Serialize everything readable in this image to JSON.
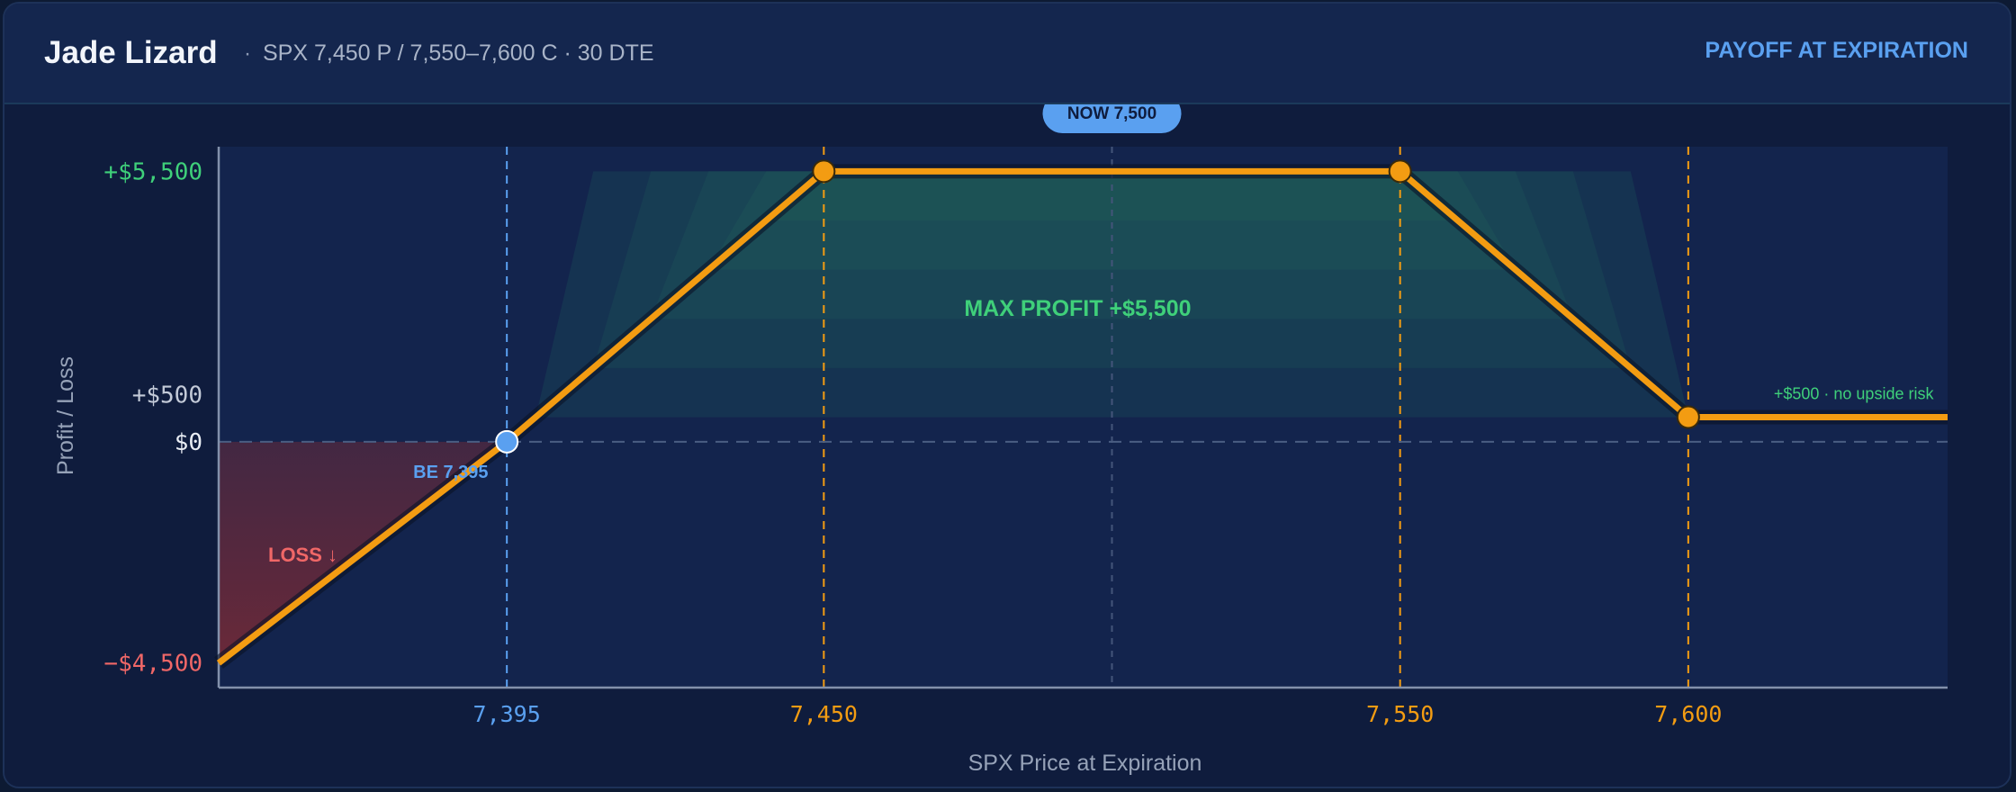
{
  "header": {
    "title": "Jade Lizard",
    "separator": "·",
    "subtitle": "SPX 7,450 P / 7,550–7,600 C · 30 DTE",
    "badge": "PAYOFF AT EXPIRATION"
  },
  "chart_data": {
    "type": "line",
    "title": "",
    "xlabel": "SPX Price at Expiration",
    "ylabel": "Profit / Loss",
    "xlim": [
      7345,
      7645
    ],
    "ylim": [
      -5000,
      6000
    ],
    "series": [
      {
        "x": [
          7345,
          7395,
          7450,
          7550,
          7600,
          7645
        ],
        "y": [
          -4500,
          0,
          5500,
          5500,
          500,
          500
        ]
      }
    ],
    "x_ticks": [
      {
        "value": 7395,
        "label": "7,395"
      },
      {
        "value": 7450,
        "label": "7,450"
      },
      {
        "value": 7550,
        "label": "7,550"
      },
      {
        "value": 7600,
        "label": "7,600"
      }
    ],
    "y_ticks": [
      {
        "value": 5500,
        "label": "+$5,500"
      },
      {
        "value": 500,
        "label": "+$500"
      },
      {
        "value": 0,
        "label": "$0"
      },
      {
        "value": -4500,
        "label": "−$4,500"
      }
    ],
    "markers": [
      {
        "x": 7395,
        "y": 0,
        "kind": "breakeven"
      },
      {
        "x": 7450,
        "y": 5500,
        "kind": "strike"
      },
      {
        "x": 7550,
        "y": 5500,
        "kind": "strike"
      },
      {
        "x": 7600,
        "y": 500,
        "kind": "strike"
      }
    ],
    "current_price": {
      "value": 7500,
      "label": "NOW 7,500"
    },
    "annotations": {
      "max_profit": "MAX PROFIT  +$5,500",
      "breakeven": "BE 7,395",
      "loss": "LOSS ↓",
      "upside": "+$500 · no upside risk"
    },
    "colors": {
      "payoff": "#f39c12",
      "breakeven": "#5aa0f0",
      "profit": "#3fd07a",
      "loss": "#f06767",
      "zero_line": "#4a5d82"
    }
  }
}
